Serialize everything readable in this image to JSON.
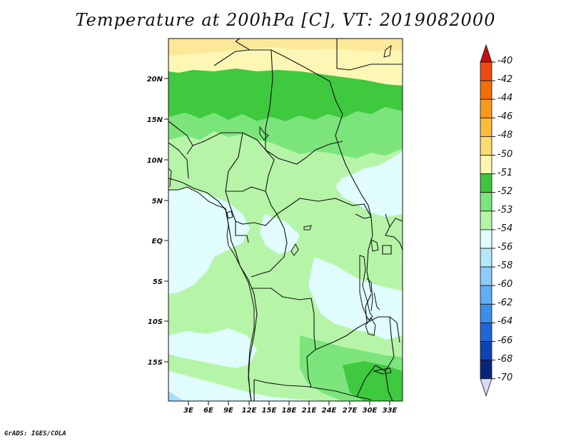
{
  "title": "Temperature at 200hPa [C], VT: 2019082000",
  "credit": "GrADS: IGES/COLA",
  "lat_labels": [
    "20N",
    "15N",
    "10N",
    "5N",
    "EQ",
    "5S",
    "10S",
    "15S"
  ],
  "lon_labels": [
    "3E",
    "6E",
    "9E",
    "12E",
    "15E",
    "18E",
    "21E",
    "24E",
    "27E",
    "30E",
    "33E"
  ],
  "colorbar": {
    "labels": [
      "-40",
      "-42",
      "-44",
      "-46",
      "-48",
      "-50",
      "-51",
      "-52",
      "-53",
      "-54",
      "-56",
      "-58",
      "-60",
      "-62",
      "-64",
      "-66",
      "-68",
      "-70"
    ],
    "colors": [
      "#e0241c",
      "#ee4b10",
      "#f26f06",
      "#f79a1e",
      "#fcbb3c",
      "#fddb71",
      "#fef6b0",
      "#3fc43f",
      "#7be57b",
      "#b6f5a8",
      "#e0fcff",
      "#b4e8fb",
      "#8dcbf8",
      "#62aef2",
      "#3c8fe8",
      "#2266d6",
      "#0d43b2",
      "#08257a"
    ],
    "top_cap_color": "#c41010",
    "bottom_cap_color": "#d8d8ff"
  },
  "field_colors": {
    "c50": "#fde89a",
    "c51": "#fef6b4",
    "c52": "#3ec93f",
    "c53": "#7be57b",
    "c54": "#b6f5a8",
    "c56": "#e0fcff",
    "c58": "#a7dcfa"
  }
}
